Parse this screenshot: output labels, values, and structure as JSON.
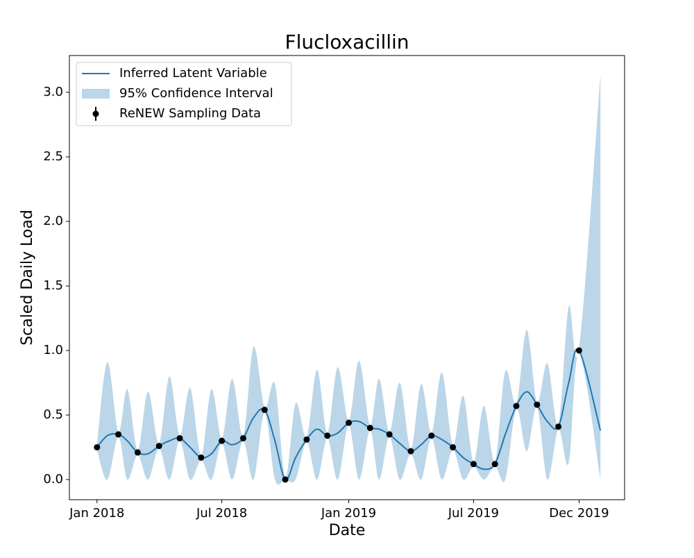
{
  "chart_data": {
    "type": "line",
    "title": "Flucloxacillin",
    "xlabel": "Date",
    "ylabel": "Scaled Daily Load",
    "xlim": [
      "2017-11-22",
      "2020-02-05"
    ],
    "xticks": [
      {
        "value": "2018-01",
        "label": "Jan 2018"
      },
      {
        "value": "2018-07",
        "label": "Jul 2018"
      },
      {
        "value": "2019-01",
        "label": "Jan 2019"
      },
      {
        "value": "2019-07",
        "label": "Jul 2019"
      },
      {
        "value": "2019-12",
        "label": "Dec 2019"
      }
    ],
    "ylim": [
      -0.156,
      3.285
    ],
    "yticks": [
      {
        "value": 0,
        "label": "0.0"
      },
      {
        "value": 0.5,
        "label": "0.5"
      },
      {
        "value": 1,
        "label": "1.0"
      },
      {
        "value": 1.5,
        "label": "1.5"
      },
      {
        "value": 2,
        "label": "2.0"
      },
      {
        "value": 2.5,
        "label": "2.5"
      },
      {
        "value": 3,
        "label": "3.0"
      }
    ],
    "legend": "upper left",
    "x": [
      "2018-01",
      "2018-01-16",
      "2018-02",
      "2018-02-14",
      "2018-03",
      "2018-03-16",
      "2018-04",
      "2018-04-16",
      "2018-05",
      "2018-05-16",
      "2018-06",
      "2018-06-16",
      "2018-07",
      "2018-07-16",
      "2018-08",
      "2018-08-16",
      "2018-09",
      "2018-09-16",
      "2018-10",
      "2018-10-16",
      "2018-11",
      "2018-11-16",
      "2018-12",
      "2018-12-16",
      "2019-01",
      "2019-01-16",
      "2019-02",
      "2019-02-14",
      "2019-03",
      "2019-03-16",
      "2019-04",
      "2019-04-16",
      "2019-05",
      "2019-05-16",
      "2019-06",
      "2019-06-16",
      "2019-07",
      "2019-07-16",
      "2019-08",
      "2019-08-16",
      "2019-09",
      "2019-09-16",
      "2019-10",
      "2019-10-16",
      "2019-11",
      "2019-11-16",
      "2019-12",
      "2020-01"
    ],
    "series": [
      {
        "name": "Inferred Latent Variable",
        "kind": "line",
        "color": "#1f77b4",
        "values": [
          0.25,
          0.34,
          0.35,
          0.3,
          0.21,
          0.2,
          0.26,
          0.3,
          0.32,
          0.25,
          0.17,
          0.2,
          0.3,
          0.27,
          0.32,
          0.48,
          0.54,
          0.3,
          0.0,
          0.17,
          0.31,
          0.39,
          0.34,
          0.36,
          0.44,
          0.45,
          0.4,
          0.39,
          0.35,
          0.28,
          0.22,
          0.27,
          0.34,
          0.31,
          0.25,
          0.17,
          0.12,
          0.08,
          0.12,
          0.35,
          0.57,
          0.68,
          0.58,
          0.45,
          0.41,
          0.75,
          1.0,
          0.38
        ]
      },
      {
        "name": "95% Confidence Interval",
        "kind": "band",
        "color": "#1f77b4",
        "opacity": 0.3,
        "lower": [
          0.23,
          0,
          0.33,
          0,
          0.19,
          0,
          0.24,
          0,
          0.3,
          0,
          0.15,
          0,
          0.28,
          0,
          0.3,
          0,
          0.52,
          0,
          0,
          0,
          0.29,
          0,
          0.32,
          0,
          0.42,
          0,
          0.38,
          0,
          0.33,
          0,
          0.2,
          0,
          0.32,
          0,
          0.23,
          0,
          0.1,
          0,
          0.1,
          0,
          0.55,
          0.22,
          0.56,
          0,
          0.39,
          0.13,
          0.98,
          0
        ],
        "upper": [
          0.27,
          0.91,
          0.37,
          0.7,
          0.23,
          0.68,
          0.28,
          0.8,
          0.34,
          0.71,
          0.19,
          0.7,
          0.32,
          0.78,
          0.34,
          1.03,
          0.56,
          0.74,
          0.02,
          0.59,
          0.33,
          0.85,
          0.36,
          0.87,
          0.46,
          0.92,
          0.42,
          0.78,
          0.37,
          0.75,
          0.24,
          0.74,
          0.36,
          0.83,
          0.27,
          0.65,
          0.14,
          0.57,
          0.14,
          0.84,
          0.59,
          1.16,
          0.6,
          0.9,
          0.43,
          1.34,
          1.02,
          3.14
        ]
      },
      {
        "name": "ReNEW Sampling Data",
        "kind": "points",
        "color": "#000000",
        "x": [
          "2018-01",
          "2018-02",
          "2018-03",
          "2018-04",
          "2018-05",
          "2018-06",
          "2018-07",
          "2018-08",
          "2018-09",
          "2018-10",
          "2018-11",
          "2018-12",
          "2019-01",
          "2019-02",
          "2019-03",
          "2019-04",
          "2019-05",
          "2019-06",
          "2019-07",
          "2019-08",
          "2019-09",
          "2019-10",
          "2019-11",
          "2019-12"
        ],
        "values": [
          0.25,
          0.35,
          0.21,
          0.26,
          0.32,
          0.17,
          0.3,
          0.32,
          0.54,
          0.0,
          0.31,
          0.34,
          0.44,
          0.4,
          0.35,
          0.22,
          0.34,
          0.25,
          0.12,
          0.12,
          0.57,
          0.58,
          0.41,
          1.0
        ]
      }
    ]
  }
}
